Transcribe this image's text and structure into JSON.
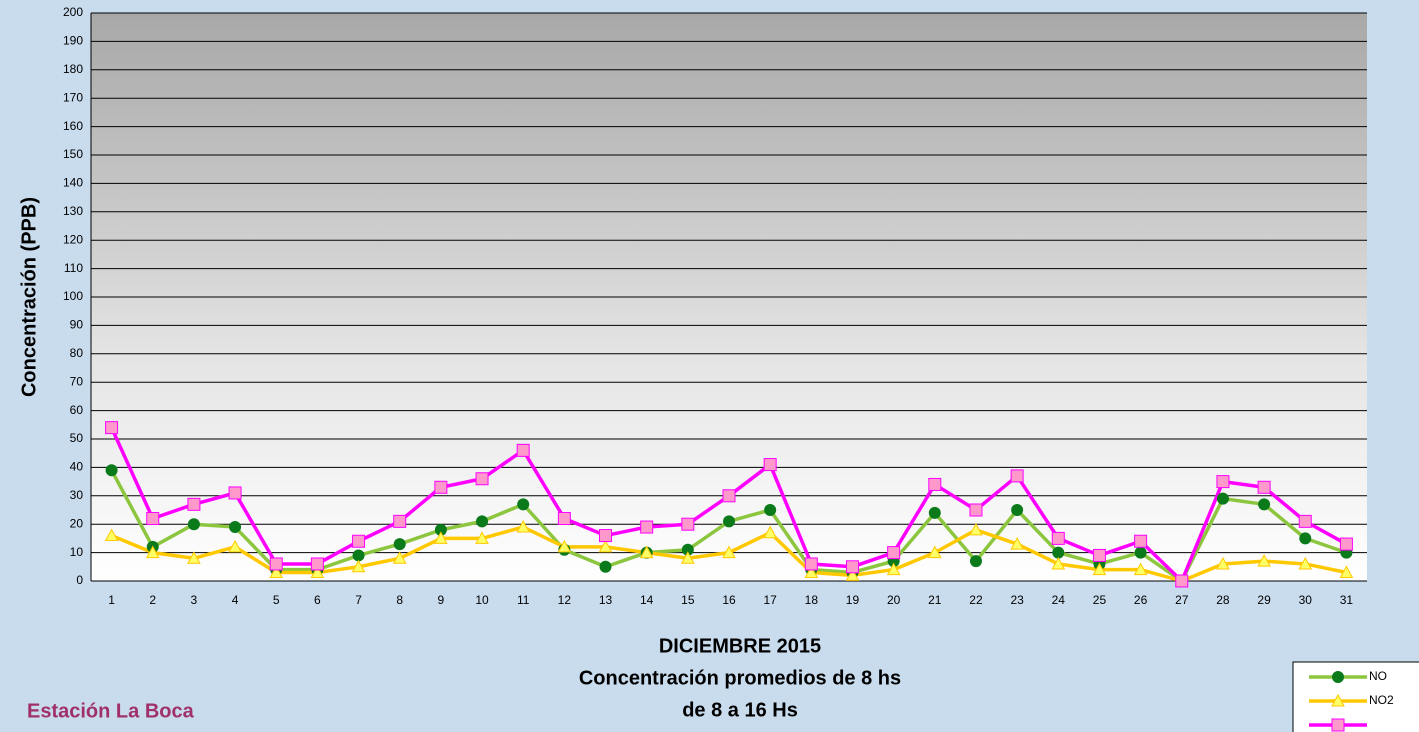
{
  "chart_data": {
    "type": "line",
    "title": [
      "DICIEMBRE 2015",
      "Concentración promedios de 8 hs",
      "de 8 a 16 Hs"
    ],
    "ylabel": "Concentración (PPB)",
    "station": "Estación La Boca",
    "categories": [
      "1",
      "2",
      "3",
      "4",
      "5",
      "6",
      "7",
      "8",
      "9",
      "10",
      "11",
      "12",
      "13",
      "14",
      "15",
      "16",
      "17",
      "18",
      "19",
      "20",
      "21",
      "22",
      "23",
      "24",
      "25",
      "26",
      "27",
      "28",
      "29",
      "30",
      "31"
    ],
    "ylim": [
      0,
      200
    ],
    "yticks": [
      0,
      10,
      20,
      30,
      40,
      50,
      60,
      70,
      80,
      90,
      100,
      110,
      120,
      130,
      140,
      150,
      160,
      170,
      180,
      190,
      200
    ],
    "grid": true,
    "series": [
      {
        "name": "NO",
        "color": "#8cc63f",
        "marker": "circle",
        "marker_color": "#0a7a1a",
        "values": [
          39,
          12,
          20,
          19,
          4,
          4,
          9,
          13,
          18,
          21,
          27,
          11,
          5,
          10,
          11,
          21,
          25,
          4,
          3,
          7,
          24,
          7,
          25,
          10,
          6,
          10,
          0,
          29,
          27,
          15,
          10
        ]
      },
      {
        "name": "NO2",
        "color": "#ffc800",
        "marker": "triangle",
        "marker_color": "#ffff66",
        "values": [
          16,
          10,
          8,
          12,
          3,
          3,
          5,
          8,
          15,
          15,
          19,
          12,
          12,
          10,
          8,
          10,
          17,
          3,
          2,
          4,
          10,
          18,
          13,
          6,
          4,
          4,
          0,
          6,
          7,
          6,
          3
        ]
      },
      {
        "color": "#ff00ff",
        "marker": "square",
        "marker_color": "#ff99cc",
        "values": [
          54,
          22,
          27,
          31,
          6,
          6,
          14,
          21,
          33,
          36,
          46,
          22,
          16,
          19,
          20,
          30,
          41,
          6,
          5,
          10,
          34,
          25,
          37,
          15,
          9,
          14,
          0,
          35,
          33,
          21,
          13
        ]
      }
    ]
  }
}
